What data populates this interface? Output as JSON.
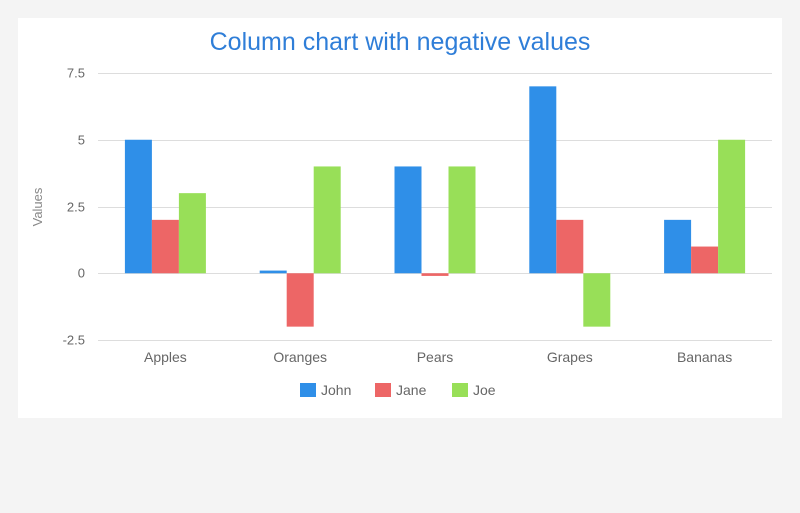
{
  "chart_data": {
    "type": "bar",
    "title": "Column chart with negative values",
    "xlabel": "",
    "ylabel": "Values",
    "ylim": [
      -2.5,
      7.5
    ],
    "yticks": [
      "7.5",
      "5",
      "2.5",
      "0",
      "-2.5"
    ],
    "ytick_values": [
      7.5,
      5,
      2.5,
      0,
      -2.5
    ],
    "categories": [
      "Apples",
      "Oranges",
      "Pears",
      "Grapes",
      "Bananas"
    ],
    "series": [
      {
        "name": "John",
        "color": "#2f8fe8",
        "values": [
          5,
          0.1,
          4,
          7,
          2
        ]
      },
      {
        "name": "Jane",
        "color": "#ed6666",
        "values": [
          2,
          -2,
          -0.1,
          2,
          1
        ]
      },
      {
        "name": "Joe",
        "color": "#98df58",
        "values": [
          3,
          4,
          4,
          -2,
          5
        ]
      }
    ],
    "grid": true,
    "legend_position": "bottom-center"
  }
}
